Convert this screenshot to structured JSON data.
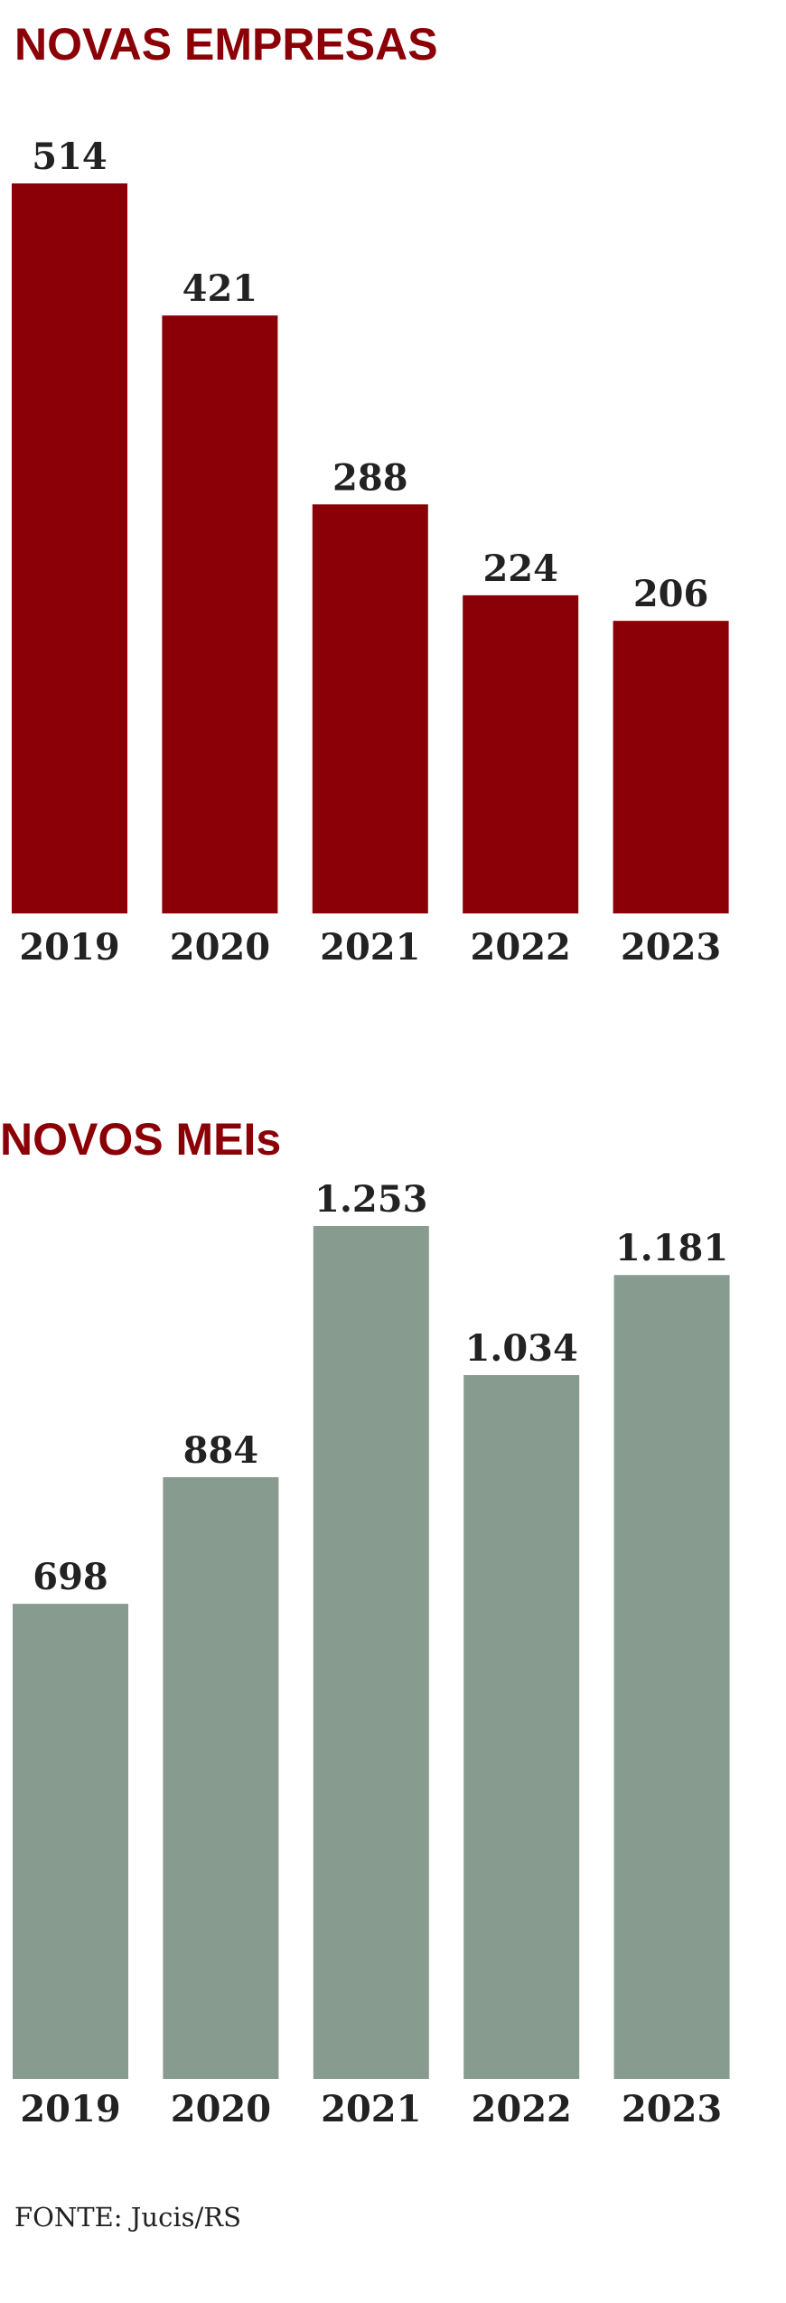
{
  "chart_data": [
    {
      "type": "bar",
      "title": "NOVAS EMPRESAS",
      "categories": [
        "2019",
        "2020",
        "2021",
        "2022",
        "2023"
      ],
      "values": [
        514,
        421,
        288,
        224,
        206
      ],
      "color": "#8b0007"
    },
    {
      "type": "bar",
      "title": "NOVOS MEIs",
      "categories": [
        "2019",
        "2020",
        "2021",
        "2022",
        "2023"
      ],
      "values": [
        698,
        884,
        1253,
        1034,
        1181
      ],
      "value_labels": [
        "698",
        "884",
        "1.253",
        "1.034",
        "1.181"
      ],
      "color": "#879b8f"
    }
  ],
  "source": "FONTE: Jucis/RS"
}
